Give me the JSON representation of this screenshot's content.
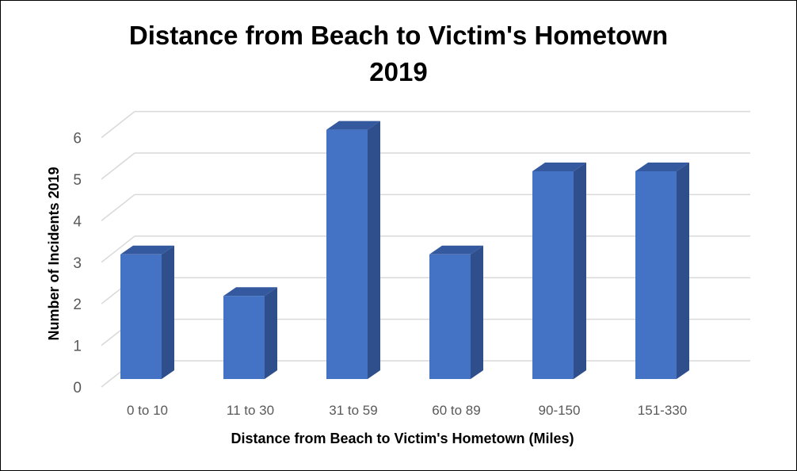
{
  "chart_data": {
    "type": "bar",
    "title": "Distance from Beach to Victim's Hometown",
    "subtitle": "2019",
    "xlabel": "Distance from Beach to Victim's Hometown (Miles)",
    "ylabel": "Number of Incidents 2019",
    "categories": [
      "0 to 10",
      "11 to 30",
      "31 to 59",
      "60 to 89",
      "90-150",
      "151-330"
    ],
    "values": [
      3,
      2,
      6,
      3,
      5,
      5
    ],
    "ylim": [
      0,
      6
    ],
    "yticks": [
      "0",
      "1",
      "2",
      "3",
      "4",
      "5",
      "6"
    ],
    "grid": true,
    "legend": "none",
    "style": "3d-column",
    "colors": {
      "bar_front": "#4472C4",
      "bar_side": "#2F4F8C",
      "bar_top": "#34599E",
      "grid": "#D9D9D9"
    }
  }
}
